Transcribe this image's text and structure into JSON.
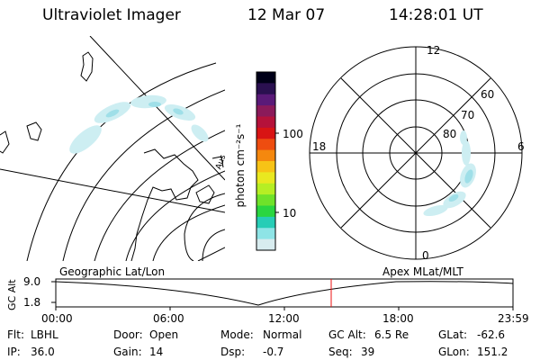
{
  "header": {
    "instrument": "Ultraviolet Imager",
    "date": "12 Mar 07",
    "time": "14:28:01 UT"
  },
  "geo_panel": {
    "label": "Geographic Lat/Lon",
    "coast_label": "Aus"
  },
  "colorbar": {
    "unit_label": "photon cm⁻²s⁻¹",
    "tick_labels": [
      "100",
      "10"
    ],
    "colors": [
      "#000018",
      "#2a1050",
      "#5a1a78",
      "#8b1a5a",
      "#b5123a",
      "#d81414",
      "#ee4d10",
      "#f5880e",
      "#f7c316",
      "#e9e820",
      "#b6ee24",
      "#6fe22a",
      "#2ad640",
      "#27cdb6",
      "#8ee4e6",
      "#d8ecef"
    ]
  },
  "polar": {
    "label": "Apex MLat/MLT",
    "mlt_labels": {
      "top": "12",
      "left": "18",
      "right": "6",
      "bottom": "0"
    },
    "lat_labels": [
      "60",
      "70",
      "80"
    ]
  },
  "altitude_panel": {
    "axis_label": "GC Alt",
    "y_ticks": [
      "9.0",
      "1.8"
    ],
    "x_ticks": [
      "00:00",
      "06:00",
      "12:00",
      "18:00",
      "23:59"
    ]
  },
  "info": {
    "row1": [
      {
        "key": "Flt:",
        "value": "LBHL"
      },
      {
        "key": "Door:",
        "value": "Open"
      },
      {
        "key": "Mode:",
        "value": "Normal"
      },
      {
        "key": "GC Alt:",
        "value": "6.5 Re"
      },
      {
        "key": "GLat:",
        "value": "-62.6"
      }
    ],
    "row2": [
      {
        "key": "IP:",
        "value": "36.0"
      },
      {
        "key": "Gain:",
        "value": "14"
      },
      {
        "key": "Dsp:",
        "value": "-0.7"
      },
      {
        "key": "Seq:",
        "value": "39"
      },
      {
        "key": "GLon:",
        "value": "151.2"
      }
    ]
  }
}
